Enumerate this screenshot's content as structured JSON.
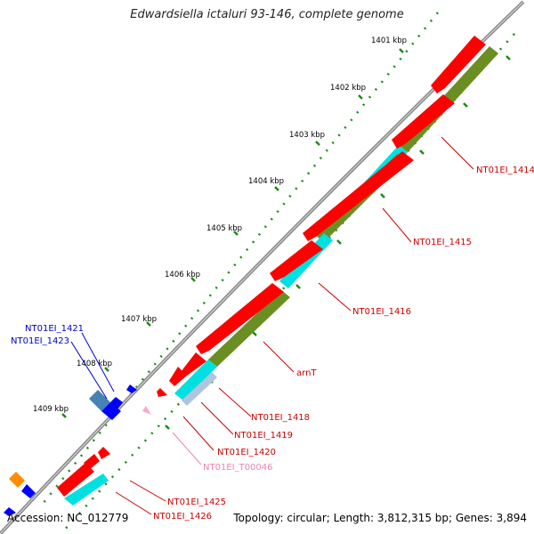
{
  "map": {
    "title": "Edwardsiella ictaluri 93-146, complete genome",
    "accession": "Accession: NC_012779",
    "summary": "Topology: circular; Length: 3,812,315 bp; Genes: 3,894",
    "tick_labels": [
      "1401 kbp",
      "1402 kbp",
      "1403 kbp",
      "1404 kbp",
      "1405 kbp",
      "1406 kbp",
      "1407 kbp",
      "1408 kbp",
      "1409 kbp"
    ],
    "gene_labels": {
      "inner": [
        "NT01EI_1414",
        "NT01EI_1415",
        "NT01EI_1416",
        "arnT",
        "NT01EI_1418",
        "NT01EI_1419",
        "NT01EI_1420",
        "NT01EI_T00046",
        "NT01EI_1425",
        "NT01EI_1426"
      ],
      "outer": [
        "NT01EI_1421",
        "NT01EI_1423"
      ]
    },
    "colors": {
      "cds": "#ff0000",
      "gene_green": "#6b8e23",
      "gene_cyan": "#00e0e0",
      "trna": "#f6a9cf",
      "outer_blue": "#0000ff",
      "outer_steel": "#4682b4",
      "outer_orange": "#ff8c00",
      "label_red": "#cc0000",
      "label_blue": "#0000cc",
      "label_pink": "#ee82b4",
      "tick_green": "#1a8a1a",
      "backbone": "#888888"
    }
  }
}
